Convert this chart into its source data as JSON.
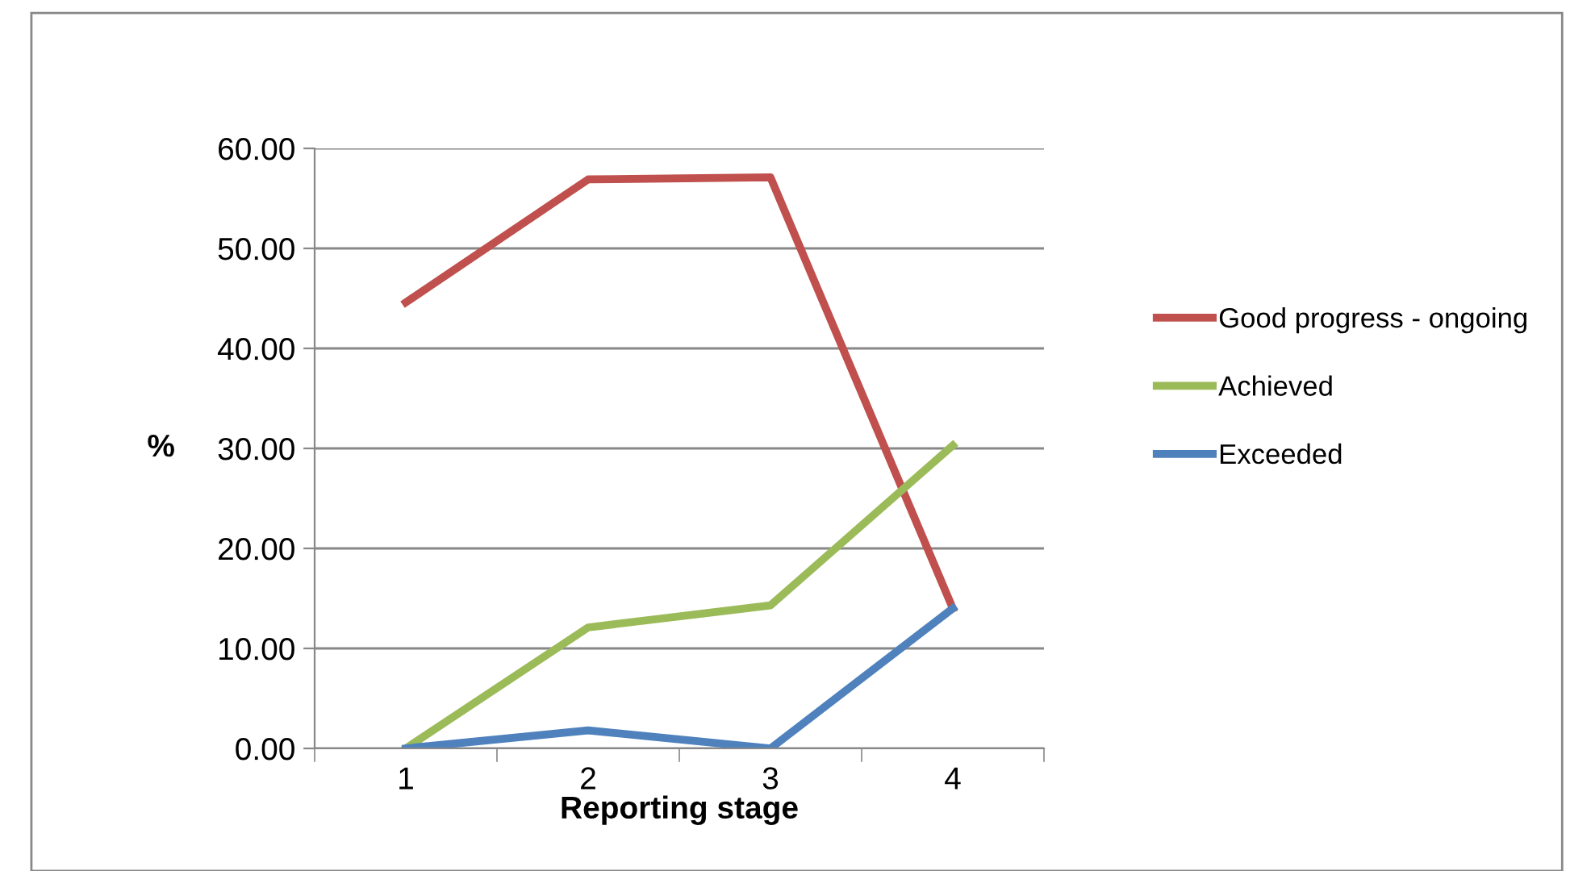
{
  "chart_data": {
    "type": "line",
    "xlabel": "Reporting stage",
    "ylabel": "%",
    "categories": [
      "1",
      "2",
      "3",
      "4"
    ],
    "series": [
      {
        "name": "Good progress - ongoing",
        "color": "#c0504d",
        "values": [
          44.6,
          56.9,
          57.1,
          14.0
        ]
      },
      {
        "name": "Achieved",
        "color": "#9bbb59",
        "values": [
          0.0,
          12.1,
          14.3,
          30.3
        ]
      },
      {
        "name": "Exceeded",
        "color": "#4f81bd",
        "values": [
          0.0,
          1.8,
          0.0,
          14.0
        ]
      }
    ],
    "ylim": [
      0,
      60
    ],
    "yticks": [
      {
        "value": 0,
        "label": "0.00"
      },
      {
        "value": 10,
        "label": "10.00"
      },
      {
        "value": 20,
        "label": "20.00"
      },
      {
        "value": 30,
        "label": "30.00"
      },
      {
        "value": 40,
        "label": "40.00"
      },
      {
        "value": 50,
        "label": "50.00"
      },
      {
        "value": 60,
        "label": "60.00"
      }
    ],
    "grid": "y",
    "legend": "right",
    "marker": "none",
    "line_style": "solid"
  }
}
